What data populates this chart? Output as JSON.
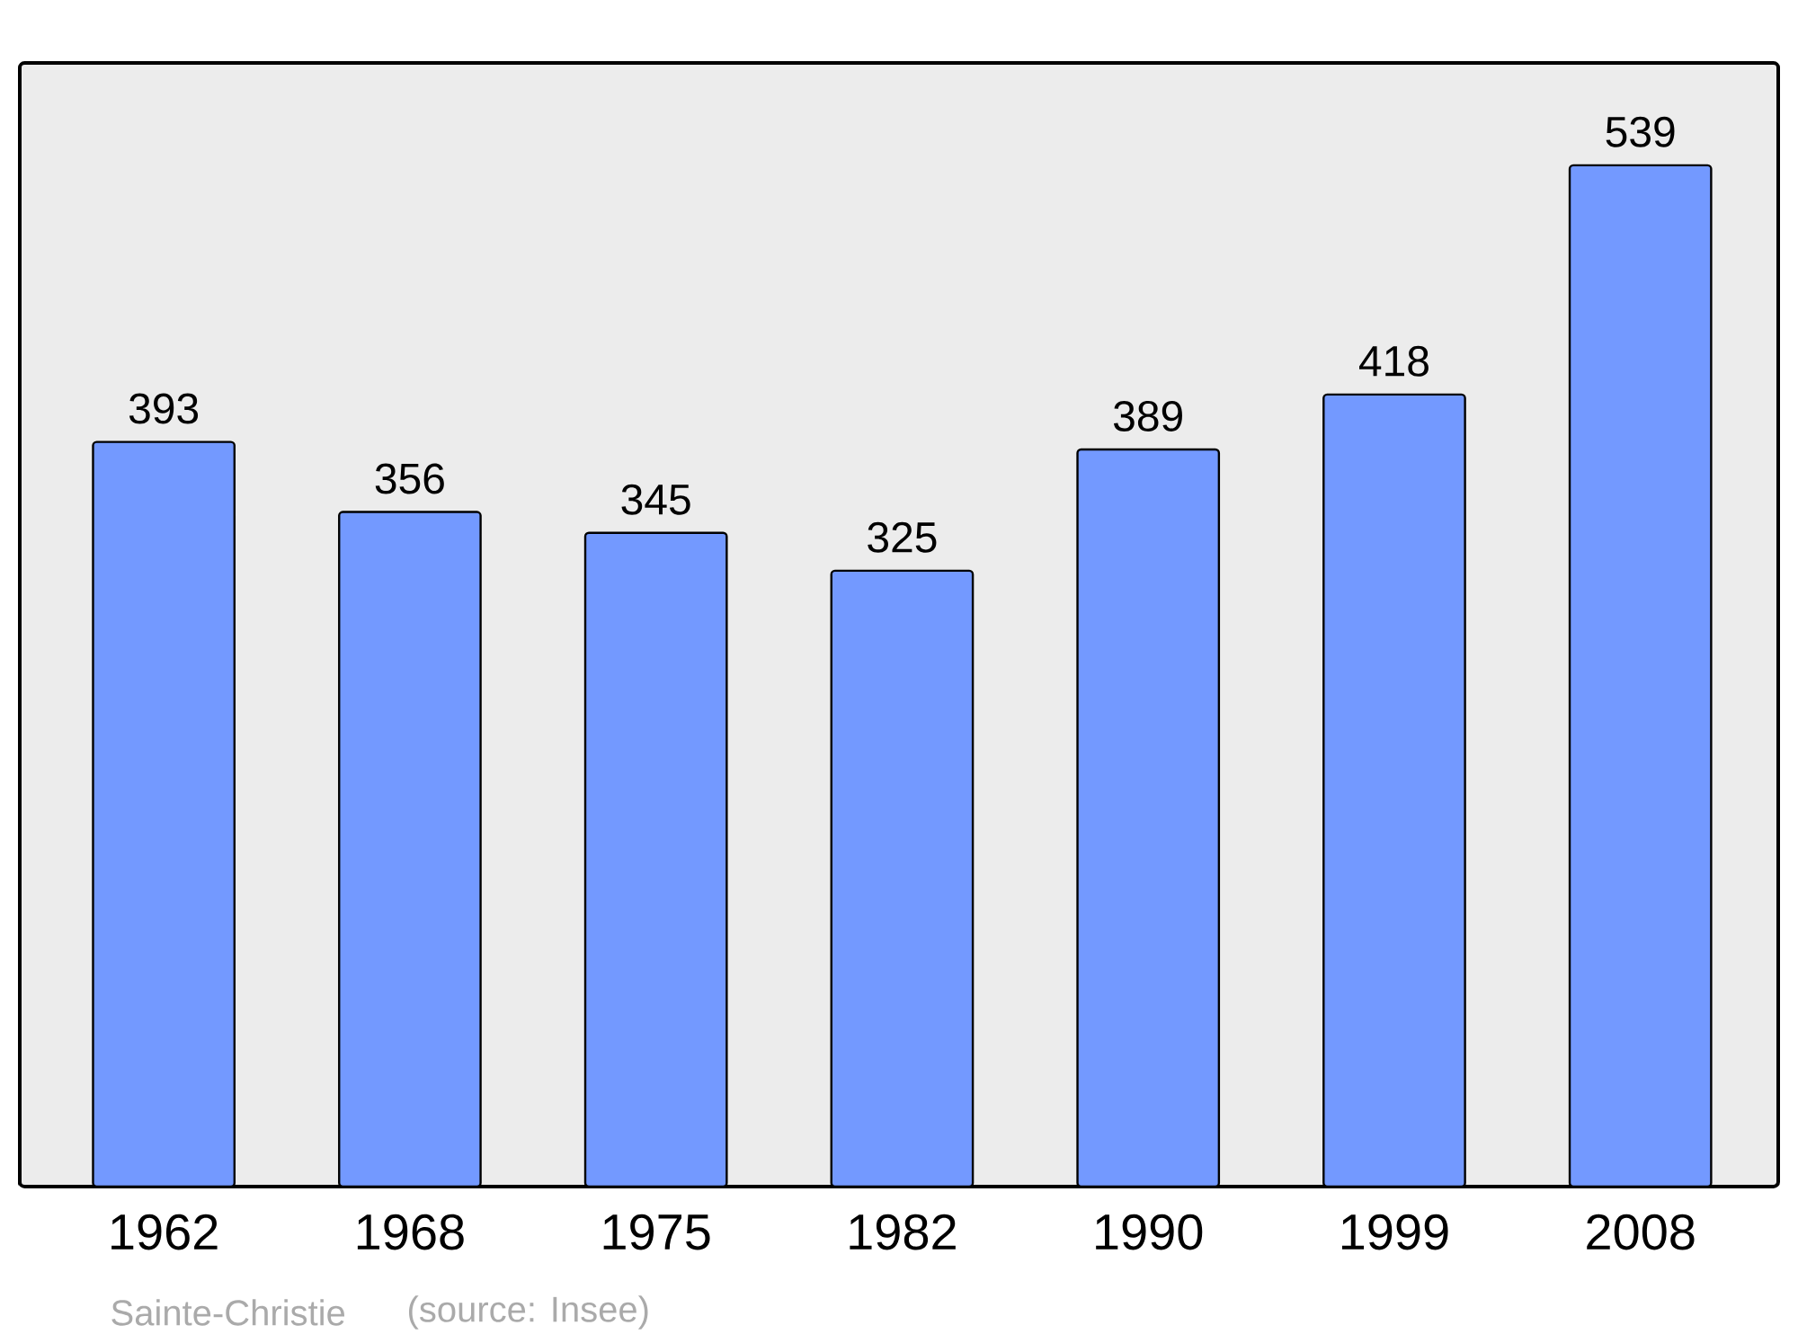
{
  "chart_data": {
    "type": "bar",
    "categories": [
      "1962",
      "1968",
      "1975",
      "1982",
      "1990",
      "1999",
      "2008"
    ],
    "values": [
      393,
      356,
      345,
      325,
      389,
      418,
      539
    ],
    "color": "#7399ff",
    "ylim": [
      0,
      593
    ],
    "data_labels": true,
    "annotations": [
      "Sainte-Christie",
      "(source: Insee)"
    ]
  }
}
